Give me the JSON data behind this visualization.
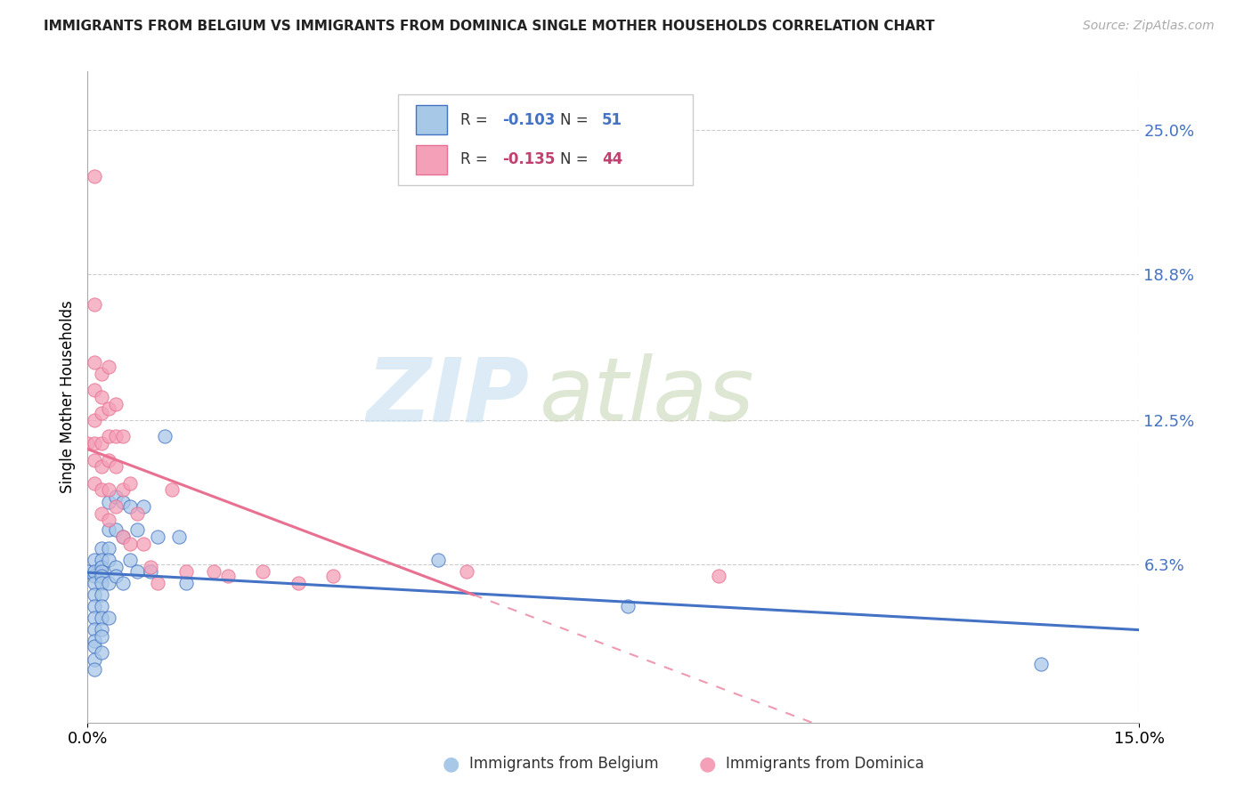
{
  "title": "IMMIGRANTS FROM BELGIUM VS IMMIGRANTS FROM DOMINICA SINGLE MOTHER HOUSEHOLDS CORRELATION CHART",
  "source": "Source: ZipAtlas.com",
  "ylabel": "Single Mother Households",
  "ytick_labels": [
    "6.3%",
    "12.5%",
    "18.8%",
    "25.0%"
  ],
  "ytick_values": [
    0.063,
    0.125,
    0.188,
    0.25
  ],
  "xlim": [
    0.0,
    0.15
  ],
  "ylim": [
    -0.005,
    0.275
  ],
  "belgium_R": -0.103,
  "belgium_N": 51,
  "dominica_R": -0.135,
  "dominica_N": 44,
  "belgium_color": "#a8c8e8",
  "dominica_color": "#f4a0b8",
  "belgium_line_color": "#4472c4",
  "dominica_line_color": "#e87090",
  "watermark_zip": "ZIP",
  "watermark_atlas": "atlas",
  "watermark_color_zip": "#c8dff0",
  "watermark_color_atlas": "#d8e8c8",
  "legend_label_belgium": "Immigrants from Belgium",
  "legend_label_dominica": "Immigrants from Dominica",
  "belgium_x": [
    0.0,
    0.001,
    0.001,
    0.001,
    0.001,
    0.001,
    0.001,
    0.001,
    0.001,
    0.001,
    0.001,
    0.001,
    0.001,
    0.002,
    0.002,
    0.002,
    0.002,
    0.002,
    0.002,
    0.002,
    0.002,
    0.002,
    0.002,
    0.002,
    0.002,
    0.003,
    0.003,
    0.003,
    0.003,
    0.003,
    0.003,
    0.004,
    0.004,
    0.004,
    0.004,
    0.005,
    0.005,
    0.005,
    0.006,
    0.006,
    0.007,
    0.007,
    0.008,
    0.009,
    0.01,
    0.011,
    0.013,
    0.014,
    0.05,
    0.077,
    0.136
  ],
  "belgium_y": [
    0.06,
    0.058,
    0.065,
    0.06,
    0.055,
    0.05,
    0.045,
    0.04,
    0.035,
    0.03,
    0.028,
    0.022,
    0.018,
    0.07,
    0.065,
    0.062,
    0.06,
    0.058,
    0.055,
    0.05,
    0.045,
    0.04,
    0.035,
    0.032,
    0.025,
    0.09,
    0.078,
    0.07,
    0.065,
    0.055,
    0.04,
    0.092,
    0.078,
    0.062,
    0.058,
    0.09,
    0.075,
    0.055,
    0.088,
    0.065,
    0.078,
    0.06,
    0.088,
    0.06,
    0.075,
    0.118,
    0.075,
    0.055,
    0.065,
    0.045,
    0.02
  ],
  "dominica_x": [
    0.0,
    0.001,
    0.001,
    0.001,
    0.001,
    0.001,
    0.001,
    0.001,
    0.001,
    0.002,
    0.002,
    0.002,
    0.002,
    0.002,
    0.002,
    0.002,
    0.003,
    0.003,
    0.003,
    0.003,
    0.003,
    0.003,
    0.004,
    0.004,
    0.004,
    0.004,
    0.005,
    0.005,
    0.005,
    0.006,
    0.006,
    0.007,
    0.008,
    0.009,
    0.01,
    0.012,
    0.014,
    0.018,
    0.02,
    0.025,
    0.03,
    0.035,
    0.054,
    0.09
  ],
  "dominica_y": [
    0.115,
    0.23,
    0.175,
    0.15,
    0.138,
    0.125,
    0.115,
    0.108,
    0.098,
    0.145,
    0.135,
    0.128,
    0.115,
    0.105,
    0.095,
    0.085,
    0.148,
    0.13,
    0.118,
    0.108,
    0.095,
    0.082,
    0.132,
    0.118,
    0.105,
    0.088,
    0.118,
    0.095,
    0.075,
    0.098,
    0.072,
    0.085,
    0.072,
    0.062,
    0.055,
    0.095,
    0.06,
    0.06,
    0.058,
    0.06,
    0.055,
    0.058,
    0.06,
    0.058
  ],
  "xtick_positions": [
    0.0,
    0.15
  ],
  "xtick_labels": [
    "0.0%",
    "15.0%"
  ]
}
